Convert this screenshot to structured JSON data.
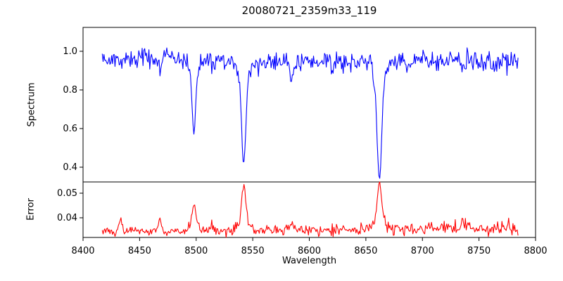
{
  "chart_data": {
    "type": "line",
    "title": "20080721_2359m33_119",
    "xlabel": "Wavelength",
    "xlim": [
      8400,
      8800
    ],
    "x_ticks": [
      8400,
      8450,
      8500,
      8550,
      8600,
      8650,
      8700,
      8750,
      8800
    ],
    "x_range_data": [
      8417,
      8785
    ],
    "x_step": 0.75,
    "seed": 42,
    "grid": false,
    "legend": "none",
    "colors": {
      "axis": "#000000",
      "background": "#ffffff"
    },
    "panels": [
      {
        "name": "spectrum",
        "ylabel": "Spectrum",
        "color": "#0000ff",
        "ylim": [
          0.3236,
          1.1236
        ],
        "y_ticks": [
          1.0,
          0.8,
          0.6,
          0.4
        ],
        "y_tick_labels": [
          "1.0",
          "0.8",
          "0.6",
          "0.4"
        ],
        "continuum": 0.955,
        "continuum_wiggles": [
          {
            "amp": 0.008,
            "period": 38,
            "phase": 0
          },
          {
            "amp": 0.006,
            "period": 91,
            "phase": 2
          }
        ],
        "noise_error_scale": 0.7,
        "features_absorption": [
          {
            "center": 8433,
            "depth": 0.045,
            "sigma": 1.5
          },
          {
            "center": 8468,
            "depth": 0.05,
            "sigma": 1.5
          },
          {
            "center": 8498,
            "depth": 0.345,
            "sigma": 1.6
          },
          {
            "center": 8498,
            "depth": 0.05,
            "sigma": 4.5
          },
          {
            "center": 8514,
            "depth": 0.045,
            "sigma": 1.8
          },
          {
            "center": 8542,
            "depth": 0.46,
            "sigma": 1.9
          },
          {
            "center": 8542,
            "depth": 0.08,
            "sigma": 6.0
          },
          {
            "center": 8585,
            "depth": 0.075,
            "sigma": 2.0
          },
          {
            "center": 8620,
            "depth": 0.04,
            "sigma": 1.6
          },
          {
            "center": 8654,
            "depth": -0.07,
            "sigma": 0.9
          },
          {
            "center": 8662,
            "depth": 0.55,
            "sigma": 2.0
          },
          {
            "center": 8662,
            "depth": 0.09,
            "sigma": 6.5
          },
          {
            "center": 8688,
            "depth": 0.04,
            "sigma": 1.5
          },
          {
            "center": 8713,
            "depth": 0.04,
            "sigma": 1.5
          },
          {
            "center": 8736,
            "depth": 0.05,
            "sigma": 1.6
          },
          {
            "center": 8762,
            "depth": 0.04,
            "sigma": 1.5
          }
        ],
        "main_absorption_minima": [
          {
            "wavelength": 8498,
            "value": 0.6
          },
          {
            "wavelength": 8542,
            "value": 0.43
          },
          {
            "wavelength": 8662,
            "value": 0.35
          }
        ]
      },
      {
        "name": "error",
        "ylabel": "Error",
        "color": "#ff0000",
        "ylim": [
          0.032,
          0.05457
        ],
        "y_ticks": [
          0.05,
          0.04
        ],
        "y_tick_labels": [
          "0.05",
          "0.04"
        ],
        "baseline": 0.0345,
        "trend_quadratic": 0.0018,
        "noise_base": 0.0007,
        "noise_slope": 0.0009,
        "peaks": [
          {
            "center": 8433,
            "amp": 0.005,
            "sigma": 1.3
          },
          {
            "center": 8468,
            "amp": 0.0048,
            "sigma": 1.3
          },
          {
            "center": 8498,
            "amp": 0.009,
            "sigma": 1.7
          },
          {
            "center": 8498,
            "amp": 0.002,
            "sigma": 4.0
          },
          {
            "center": 8514,
            "amp": 0.0028,
            "sigma": 1.5
          },
          {
            "center": 8542,
            "amp": 0.0145,
            "sigma": 1.9
          },
          {
            "center": 8542,
            "amp": 0.003,
            "sigma": 5.0
          },
          {
            "center": 8585,
            "amp": 0.0028,
            "sigma": 1.6
          },
          {
            "center": 8662,
            "amp": 0.0155,
            "sigma": 2.0
          },
          {
            "center": 8662,
            "amp": 0.003,
            "sigma": 5.5
          },
          {
            "center": 8736,
            "amp": 0.0025,
            "sigma": 1.5
          }
        ],
        "main_peak_values": [
          {
            "wavelength": 8498,
            "value": 0.045
          },
          {
            "wavelength": 8542,
            "value": 0.052
          },
          {
            "wavelength": 8662,
            "value": 0.0535
          }
        ]
      }
    ]
  }
}
